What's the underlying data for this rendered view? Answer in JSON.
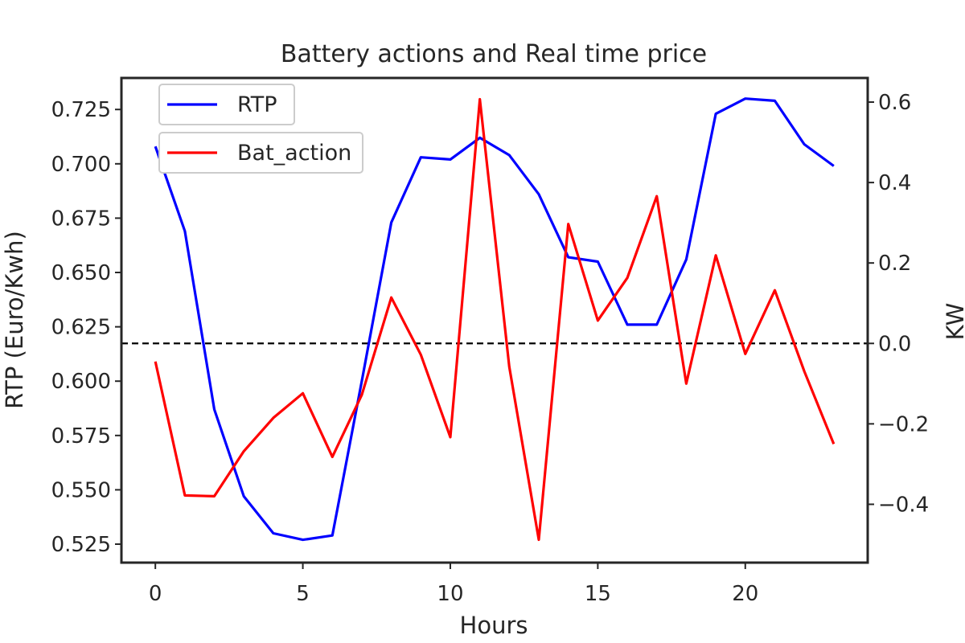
{
  "chart_data": {
    "type": "line",
    "title": "Battery actions and Real time price",
    "xlabel": "Hours",
    "ylabel_left": "RTP (Euro/Kwh)",
    "ylabel_right": "KW",
    "x": [
      0,
      1,
      2,
      3,
      4,
      5,
      6,
      7,
      8,
      9,
      10,
      11,
      12,
      13,
      14,
      15,
      16,
      17,
      18,
      19,
      20,
      21,
      22,
      23
    ],
    "x_ticks": [
      0,
      5,
      10,
      15,
      20
    ],
    "xlim": [
      -1.15,
      24.15
    ],
    "left_axis": {
      "ylim": [
        0.5165,
        0.7395
      ],
      "ticks": [
        0.525,
        0.55,
        0.575,
        0.6,
        0.625,
        0.65,
        0.675,
        0.7,
        0.725
      ],
      "tick_labels": [
        "0.525",
        "0.550",
        "0.575",
        "0.600",
        "0.625",
        "0.650",
        "0.675",
        "0.700",
        "0.725"
      ]
    },
    "right_axis": {
      "ylim": [
        -0.545,
        0.66
      ],
      "ticks": [
        -0.4,
        -0.2,
        0.0,
        0.2,
        0.4,
        0.6
      ],
      "tick_labels": [
        "−0.4",
        "−0.2",
        "0.0",
        "0.2",
        "0.4",
        "0.6"
      ]
    },
    "series": [
      {
        "name": "RTP",
        "axis": "left",
        "color": "#0000ff",
        "values": [
          0.708,
          0.669,
          0.587,
          0.547,
          0.53,
          0.527,
          0.529,
          0.6,
          0.673,
          0.703,
          0.702,
          0.712,
          0.704,
          0.686,
          0.657,
          0.655,
          0.626,
          0.626,
          0.656,
          0.723,
          0.73,
          0.729,
          0.709,
          0.699
        ]
      },
      {
        "name": "Bat_action",
        "axis": "right",
        "color": "#ff0000",
        "values": [
          -0.045,
          -0.378,
          -0.38,
          -0.268,
          -0.185,
          -0.124,
          -0.282,
          -0.128,
          0.114,
          -0.028,
          -0.233,
          0.607,
          -0.058,
          -0.488,
          0.297,
          0.057,
          0.163,
          0.366,
          -0.1,
          0.219,
          -0.026,
          0.132,
          -0.069,
          -0.25
        ]
      }
    ],
    "reference_line": {
      "axis": "right",
      "value": 0.0,
      "style": "dashed",
      "color": "#000000"
    },
    "legend": {
      "placement": "top-left",
      "entries": [
        "RTP",
        "Bat_action"
      ]
    },
    "grid": false
  }
}
